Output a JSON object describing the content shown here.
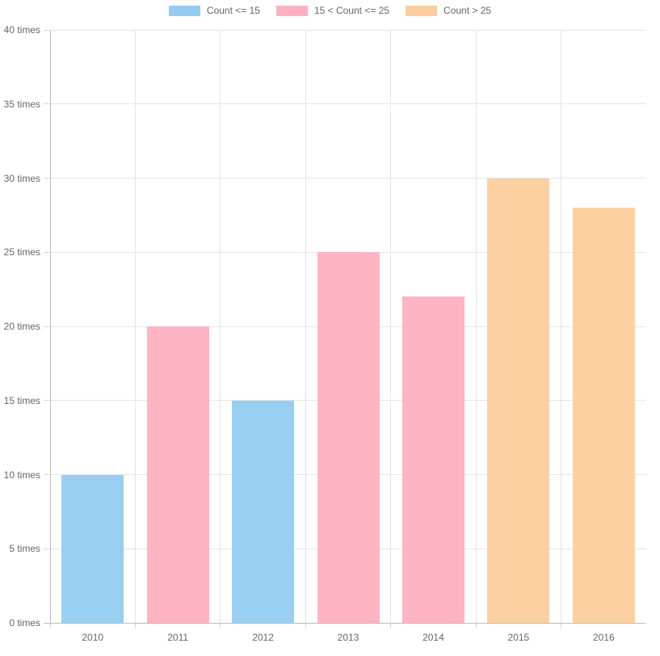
{
  "chart_data": {
    "type": "bar",
    "title": "",
    "xlabel": "",
    "ylabel": "",
    "categories": [
      "2010",
      "2011",
      "2012",
      "2013",
      "2014",
      "2015",
      "2016"
    ],
    "values": [
      10,
      20,
      15,
      25,
      22,
      30,
      28
    ],
    "bar_series": [
      0,
      1,
      0,
      1,
      1,
      2,
      2
    ],
    "series_legend": [
      {
        "label": "Count <= 15",
        "color": "#94CBF2"
      },
      {
        "label": "15 < Count <= 25",
        "color": "#FFB0C1"
      },
      {
        "label": "Count > 25",
        "color": "#FDCD9C"
      }
    ],
    "ylim": [
      0,
      40
    ],
    "ytick_step": 5,
    "ytick_labels": [
      "0 times",
      "5 times",
      "10 times",
      "15 times",
      "20 times",
      "25 times",
      "30 times",
      "35 times",
      "40 times"
    ],
    "grid": true,
    "legend_position": "top"
  },
  "style_colors": {
    "grid": "#e5e5e5",
    "axis": "#bcbcbc",
    "tick_text": "#666666",
    "legend_text": "#666666",
    "background": "#ffffff"
  }
}
